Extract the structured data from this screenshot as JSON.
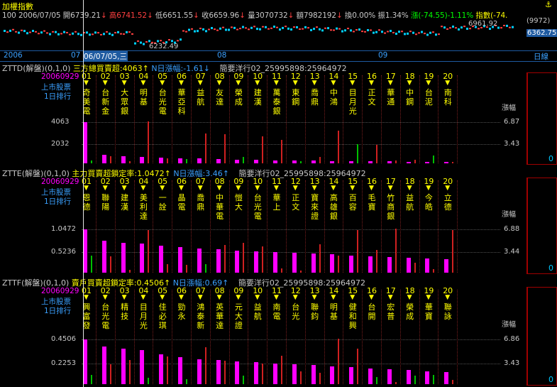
{
  "header": {
    "title": "加權指數",
    "anchor_glyph": "⚓",
    "quote": {
      "prefix": "100 2006/07/05",
      "open": "開6739.21",
      "open_arrow": "↓",
      "high": "高6741.52",
      "high_arrow": "↓",
      "low": "低6651.55",
      "low_arrow": "↓",
      "close": "收6659.96",
      "close_arrow": "↓",
      "volume": "量3070732",
      "volume_arrow": "↓",
      "amount": "額7982192",
      "amount_arrow": "↓",
      "turnover": "換0.00%",
      "amplitude": "振1.34%",
      "change": "漲(-74.55)-1.11%",
      "index_label": "指數(-74."
    },
    "mini_chart": {
      "high_label": "6961.92",
      "low_label": "6232.49",
      "level_label": "(9972)",
      "price_label": "6362.75"
    }
  },
  "timeline": {
    "labels": [
      "2006",
      "07",
      "06/07/05,三",
      "08",
      "09"
    ],
    "right_label": "日線"
  },
  "panels": [
    {
      "code": "ZTTD(解盤)(0,1,0)",
      "title": "三方總買賣超:4063↑",
      "n_label": "N日漲幅:-1.61↓",
      "extra": "簡要洋行02_25995898:25964972",
      "date": "20060929",
      "market": "上市股票",
      "rank": "1日排行",
      "top_tick": "4063",
      "mid_tick": "2032",
      "right_label": "漲幅",
      "right_top": "6.87",
      "right_mid": "3.43",
      "zero": "0",
      "ranks": [
        "01",
        "02",
        "03",
        "04",
        "05",
        "06",
        "07",
        "08",
        "09",
        "10",
        "11",
        "12",
        "13",
        "14",
        "15",
        "16",
        "17",
        "18",
        "19",
        "20"
      ],
      "names": [
        "奇美電",
        "台新金",
        "大眾銀",
        "明基",
        "台光電",
        "華亞科",
        "益航",
        "友達",
        "榮成",
        "建漢",
        "萬泰銀",
        "東鋼",
        "喬鼎",
        "中鴻",
        "目月光",
        "正文",
        "華通",
        "中鋼",
        "台泥",
        "南科"
      ],
      "values": [
        4063,
        820,
        700,
        620,
        540,
        520,
        470,
        410,
        370,
        330,
        300,
        280,
        260,
        240,
        220,
        200,
        190,
        170,
        150,
        140
      ],
      "changes": [
        -0.5,
        1.2,
        0.3,
        6.9,
        0.8,
        -0.7,
        4.9,
        4.8,
        -1.1,
        4.4,
        3.8,
        -0.4,
        1.0,
        5.3,
        -3.2,
        3.0,
        0.5,
        0.6,
        -1.3,
        0.2
      ]
    },
    {
      "code": "ZTTE(解盤)(0,1,0)",
      "title": "主力買賣超鎖定率:1.0472↑",
      "n_label": "N日漲幅:3.46↑",
      "extra": "簡要洋行02_25995898:25964972",
      "date": "20060929",
      "market": "上市股票",
      "rank": "1日排行",
      "top_tick": "1.0472",
      "mid_tick": "0.5236",
      "right_label": "漲幅",
      "right_top": "6.88",
      "right_mid": "3.44",
      "zero": "0",
      "ranks": [
        "01",
        "02",
        "03",
        "04",
        "05",
        "06",
        "07",
        "08",
        "09",
        "10",
        "11",
        "12",
        "13",
        "14",
        "15",
        "16",
        "17",
        "18",
        "19",
        "20"
      ],
      "names": [
        "恩德",
        "聯陽",
        "建漢",
        "美利達",
        "一詮",
        "晶電",
        "喬鼎",
        "中華電",
        "愷大",
        "台光電",
        "華上",
        "正文",
        "寶來證",
        "高雄銀",
        "百容",
        "毛寶",
        "竹商銀",
        "益航",
        "今皓",
        "立德"
      ],
      "values": [
        1.0472,
        0.78,
        0.72,
        0.7,
        0.66,
        0.62,
        0.58,
        0.56,
        0.54,
        0.52,
        0.5,
        0.48,
        0.46,
        0.44,
        0.42,
        0.4,
        0.38,
        0.36,
        0.34,
        0.32
      ],
      "changes": [
        -2.7,
        2.6,
        0.4,
        6.6,
        1.3,
        1.2,
        -1.3,
        4.3,
        4.7,
        4.1,
        0.7,
        0.3,
        4.4,
        2.7,
        6.6,
        3.5,
        6.9,
        1.5,
        0.6,
        6.6
      ]
    },
    {
      "code": "ZTTF(解盤)(0,1,0)",
      "title": "賣戶買賣超鎖定率:0.4506↑",
      "n_label": "N日漲幅:0.69↑",
      "extra": "簡要洋行02_25995898:25964972",
      "date": "20060929",
      "market": "上市股票",
      "rank": "1日排行",
      "top_tick": "0.4506",
      "mid_tick": "0.2253",
      "right_label": "漲幅",
      "right_top": "6.86",
      "right_mid": "3.43",
      "zero": "0",
      "ranks": [
        "01",
        "02",
        "03",
        "04",
        "05",
        "06",
        "07",
        "08",
        "09",
        "10",
        "11",
        "12",
        "13",
        "14",
        "15",
        "16",
        "17",
        "18",
        "19",
        "20"
      ],
      "names": [
        "興富發",
        "台光電",
        "精技",
        "目月光",
        "佳必琪",
        "勁永",
        "鴻泰新",
        "英華達",
        "元大證",
        "益航",
        "南電",
        "台光",
        "聯鈞",
        "明基",
        "健和興",
        "台開",
        "宏普",
        "榮成",
        "華寶",
        "聯詠"
      ],
      "values": [
        0.4506,
        0.38,
        0.36,
        0.34,
        0.3,
        0.27,
        0.25,
        0.24,
        0.23,
        0.22,
        0.21,
        0.2,
        0.19,
        0.18,
        0.17,
        0.16,
        0.15,
        0.14,
        0.13,
        0.12
      ],
      "changes": [
        -1.4,
        3.0,
        3.6,
        -1.0,
        4.2,
        -0.7,
        5.6,
        3.5,
        -1.3,
        3.1,
        4.3,
        1.9,
        1.7,
        6.9,
        5.4,
        -1.1,
        0.3,
        -1.3,
        -1.4,
        0.6
      ]
    }
  ],
  "colors": {
    "up": "#ff4040",
    "down": "#ff4040",
    "bar_main": "#ff00ff",
    "bar_up": "#c00000",
    "bar_down": "#00c000",
    "title_accent": "#ffff00",
    "n_label": "#3aa0ff"
  }
}
